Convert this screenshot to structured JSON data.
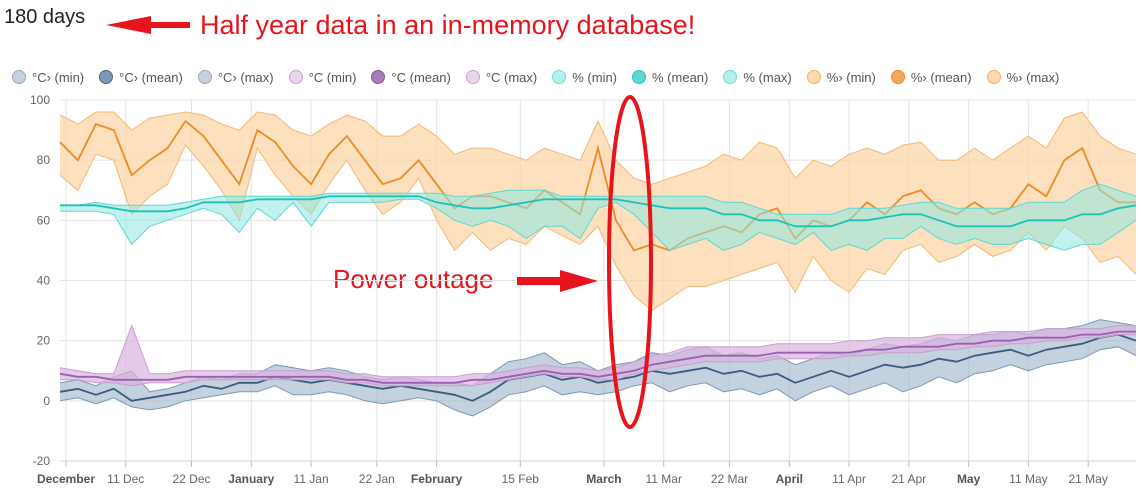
{
  "header": {
    "range_label": "180 days",
    "annotation_title": "Half year data in an in-memory database!",
    "annotation_outage": "Power outage"
  },
  "colors": {
    "annotation": "#e8141c",
    "grid": "#e3e3e3"
  },
  "chart_data": {
    "type": "area",
    "ylim": [
      -20,
      100
    ],
    "yticks": [
      -20,
      0,
      20,
      40,
      60,
      80,
      100
    ],
    "xlim_days": [
      0,
      180
    ],
    "x_axis_labels": [
      {
        "day": 1,
        "label": "December",
        "bold": true
      },
      {
        "day": 11,
        "label": "11 Dec",
        "bold": false
      },
      {
        "day": 22,
        "label": "22 Dec",
        "bold": false
      },
      {
        "day": 32,
        "label": "January",
        "bold": true
      },
      {
        "day": 42,
        "label": "11 Jan",
        "bold": false
      },
      {
        "day": 53,
        "label": "22 Jan",
        "bold": false
      },
      {
        "day": 63,
        "label": "February",
        "bold": true
      },
      {
        "day": 77,
        "label": "15 Feb",
        "bold": false
      },
      {
        "day": 91,
        "label": "March",
        "bold": true
      },
      {
        "day": 101,
        "label": "11 Mar",
        "bold": false
      },
      {
        "day": 112,
        "label": "22 Mar",
        "bold": false
      },
      {
        "day": 122,
        "label": "April",
        "bold": true
      },
      {
        "day": 132,
        "label": "11 Apr",
        "bold": false
      },
      {
        "day": 142,
        "label": "21 Apr",
        "bold": false
      },
      {
        "day": 152,
        "label": "May",
        "bold": true
      },
      {
        "day": 162,
        "label": "11 May",
        "bold": false
      },
      {
        "day": 172,
        "label": "21 May",
        "bold": false
      }
    ],
    "legend": [
      {
        "label": "°C› (min)",
        "color": "#c6d2df",
        "border": "#9aabbf"
      },
      {
        "label": "°C› (mean)",
        "color": "#7f97b4",
        "border": "#4a6587"
      },
      {
        "label": "°C› (max)",
        "color": "#c6d2df",
        "border": "#9aabbf"
      },
      {
        "label": "°C (min)",
        "color": "#ead6ec",
        "border": "#c89fcc"
      },
      {
        "label": "°C (mean)",
        "color": "#a77eb3",
        "border": "#8a55a0"
      },
      {
        "label": "°C (max)",
        "color": "#ead6ec",
        "border": "#c89fcc"
      },
      {
        "label": "% (min)",
        "color": "#b5f0ec",
        "border": "#6fdcd6"
      },
      {
        "label": "% (mean)",
        "color": "#5fd6ce",
        "border": "#26c6bd"
      },
      {
        "label": "% (max)",
        "color": "#b5f0ec",
        "border": "#6fdcd6"
      },
      {
        "label": "%› (min)",
        "color": "#fcd9b0",
        "border": "#f5b06a"
      },
      {
        "label": "%› (mean)",
        "color": "#f6a55e",
        "border": "#ee8a2a"
      },
      {
        "label": "%› (max)",
        "color": "#fcd9b0",
        "border": "#f5b06a"
      }
    ],
    "series": [
      {
        "name": "%›",
        "fill": "#fcd6a8",
        "fill_opacity": 0.75,
        "line": "#ef8b22",
        "edge": "#f4b878",
        "days": [
          0,
          3,
          6,
          9,
          12,
          15,
          18,
          21,
          24,
          27,
          30,
          33,
          36,
          39,
          42,
          45,
          48,
          51,
          54,
          57,
          60,
          63,
          66,
          69,
          72,
          75,
          78,
          81,
          84,
          87,
          90,
          93,
          96,
          99,
          102,
          105,
          108,
          111,
          114,
          117,
          120,
          123,
          126,
          129,
          132,
          135,
          138,
          141,
          144,
          147,
          150,
          153,
          156,
          159,
          162,
          165,
          168,
          171,
          174,
          177,
          180
        ],
        "min": [
          75,
          70,
          82,
          80,
          62,
          68,
          72,
          85,
          78,
          70,
          60,
          84,
          75,
          68,
          62,
          72,
          80,
          70,
          62,
          66,
          74,
          60,
          50,
          56,
          50,
          54,
          52,
          58,
          55,
          52,
          58,
          45,
          35,
          30,
          34,
          38,
          38,
          40,
          42,
          44,
          46,
          36,
          48,
          40,
          36,
          44,
          42,
          50,
          52,
          46,
          48,
          52,
          48,
          50,
          56,
          50,
          58,
          54,
          46,
          48,
          42
        ],
        "mean": [
          86,
          80,
          92,
          90,
          75,
          80,
          84,
          93,
          88,
          80,
          72,
          90,
          86,
          78,
          72,
          82,
          88,
          80,
          72,
          74,
          80,
          72,
          64,
          68,
          68,
          66,
          64,
          70,
          66,
          62,
          84,
          60,
          50,
          52,
          50,
          54,
          56,
          58,
          56,
          62,
          64,
          54,
          60,
          58,
          60,
          66,
          62,
          68,
          70,
          64,
          62,
          66,
          62,
          64,
          72,
          68,
          80,
          84,
          70,
          66,
          66
        ],
        "max": [
          95,
          92,
          96,
          96,
          90,
          94,
          95,
          96,
          95,
          92,
          90,
          96,
          95,
          90,
          88,
          92,
          95,
          93,
          88,
          88,
          92,
          88,
          82,
          84,
          84,
          82,
          80,
          84,
          82,
          80,
          93,
          80,
          74,
          72,
          74,
          76,
          78,
          82,
          80,
          86,
          84,
          74,
          80,
          78,
          82,
          84,
          82,
          85,
          86,
          80,
          80,
          84,
          80,
          84,
          88,
          84,
          94,
          96,
          88,
          84,
          82
        ]
      },
      {
        "name": "%",
        "fill": "#8ee8e1",
        "fill_opacity": 0.55,
        "line": "#1fc2b8",
        "edge": "#5fd8d0",
        "days": [
          0,
          3,
          6,
          9,
          12,
          15,
          18,
          21,
          24,
          27,
          30,
          33,
          36,
          39,
          42,
          45,
          48,
          51,
          54,
          57,
          60,
          63,
          66,
          69,
          72,
          75,
          78,
          81,
          84,
          87,
          90,
          93,
          96,
          99,
          102,
          105,
          108,
          111,
          114,
          117,
          120,
          123,
          126,
          129,
          132,
          135,
          138,
          141,
          144,
          147,
          150,
          153,
          156,
          159,
          162,
          165,
          168,
          171,
          174,
          177,
          180
        ],
        "min": [
          63,
          63,
          63,
          62,
          52,
          58,
          60,
          62,
          64,
          62,
          56,
          64,
          60,
          66,
          58,
          66,
          66,
          66,
          66,
          67,
          67,
          64,
          60,
          58,
          60,
          58,
          54,
          58,
          58,
          54,
          64,
          66,
          62,
          56,
          50,
          52,
          54,
          50,
          52,
          56,
          54,
          52,
          56,
          50,
          52,
          50,
          54,
          54,
          58,
          54,
          52,
          54,
          52,
          52,
          54,
          52,
          50,
          52,
          52,
          56,
          60
        ],
        "mean": [
          65,
          65,
          65,
          64,
          63,
          63,
          63,
          64,
          66,
          66,
          66,
          67,
          67,
          67,
          67,
          68,
          68,
          68,
          68,
          68,
          68,
          66,
          65,
          64,
          64,
          65,
          66,
          67,
          67,
          67,
          67,
          67,
          66,
          65,
          64,
          64,
          64,
          62,
          62,
          60,
          60,
          58,
          58,
          58,
          60,
          60,
          61,
          62,
          62,
          60,
          58,
          58,
          58,
          58,
          60,
          60,
          60,
          62,
          62,
          64,
          65
        ],
        "max": [
          65,
          65,
          66,
          65,
          65,
          65,
          65,
          66,
          67,
          68,
          68,
          68,
          68,
          68,
          68,
          69,
          69,
          69,
          69,
          69,
          69,
          69,
          68,
          68,
          69,
          70,
          70,
          70,
          68,
          68,
          68,
          68,
          68,
          68,
          68,
          68,
          68,
          66,
          66,
          64,
          62,
          62,
          62,
          62,
          64,
          64,
          64,
          65,
          66,
          66,
          64,
          64,
          64,
          64,
          66,
          66,
          66,
          70,
          72,
          70,
          68
        ]
      },
      {
        "name": "°C›",
        "fill": "#9db2ca",
        "fill_opacity": 0.6,
        "line": "#3d5a80",
        "edge": "#7f97b4",
        "days": [
          0,
          3,
          6,
          9,
          12,
          15,
          18,
          21,
          24,
          27,
          30,
          33,
          36,
          39,
          42,
          45,
          48,
          51,
          54,
          57,
          60,
          63,
          66,
          69,
          72,
          75,
          78,
          81,
          84,
          87,
          90,
          93,
          96,
          99,
          102,
          105,
          108,
          111,
          114,
          117,
          120,
          123,
          126,
          129,
          132,
          135,
          138,
          141,
          144,
          147,
          150,
          153,
          156,
          159,
          162,
          165,
          168,
          171,
          174,
          177,
          180
        ],
        "min": [
          0,
          1,
          -1,
          1,
          -2,
          -3,
          -2,
          0,
          1,
          2,
          3,
          3,
          5,
          2,
          2,
          3,
          2,
          0,
          -1,
          0,
          1,
          0,
          -3,
          -5,
          -2,
          2,
          3,
          5,
          2,
          3,
          2,
          3,
          5,
          6,
          3,
          5,
          6,
          3,
          4,
          2,
          4,
          0,
          3,
          5,
          2,
          4,
          6,
          3,
          5,
          8,
          6,
          9,
          10,
          12,
          10,
          12,
          13,
          14,
          17,
          18,
          15
        ],
        "mean": [
          3,
          4,
          2,
          4,
          0,
          1,
          2,
          3,
          5,
          4,
          6,
          6,
          8,
          7,
          6,
          7,
          6,
          5,
          4,
          5,
          4,
          3,
          2,
          0,
          3,
          7,
          8,
          9,
          7,
          8,
          6,
          7,
          8,
          10,
          9,
          10,
          11,
          9,
          10,
          8,
          9,
          6,
          8,
          10,
          8,
          10,
          12,
          11,
          12,
          14,
          13,
          15,
          16,
          17,
          15,
          17,
          18,
          19,
          21,
          22,
          20
        ],
        "max": [
          6,
          7,
          5,
          8,
          10,
          3,
          4,
          6,
          8,
          7,
          9,
          9,
          12,
          11,
          10,
          11,
          10,
          8,
          7,
          8,
          7,
          6,
          6,
          5,
          9,
          13,
          14,
          16,
          12,
          13,
          10,
          12,
          13,
          16,
          15,
          17,
          18,
          15,
          16,
          14,
          15,
          12,
          14,
          16,
          15,
          17,
          19,
          18,
          19,
          21,
          20,
          22,
          22,
          23,
          22,
          24,
          24,
          25,
          27,
          26,
          25
        ]
      },
      {
        "name": "°C",
        "fill": "#d9b4de",
        "fill_opacity": 0.7,
        "line": "#9a5fb0",
        "edge": "#c89fcc",
        "days": [
          0,
          3,
          6,
          9,
          12,
          15,
          18,
          21,
          24,
          27,
          30,
          33,
          36,
          39,
          42,
          45,
          48,
          51,
          54,
          57,
          60,
          63,
          66,
          69,
          72,
          75,
          78,
          81,
          84,
          87,
          90,
          93,
          96,
          99,
          102,
          105,
          108,
          111,
          114,
          117,
          120,
          123,
          126,
          129,
          132,
          135,
          138,
          141,
          144,
          147,
          150,
          153,
          156,
          159,
          162,
          165,
          168,
          171,
          174,
          177,
          180
        ],
        "min": [
          7,
          7,
          6,
          6,
          5,
          6,
          6,
          6,
          7,
          7,
          7,
          7,
          7,
          7,
          7,
          7,
          6,
          6,
          5,
          5,
          5,
          5,
          5,
          5,
          6,
          7,
          8,
          9,
          8,
          8,
          7,
          7,
          9,
          10,
          11,
          12,
          13,
          13,
          13,
          13,
          14,
          14,
          14,
          14,
          15,
          15,
          16,
          16,
          16,
          17,
          17,
          18,
          18,
          19,
          19,
          20,
          20,
          21,
          21,
          22,
          22
        ],
        "mean": [
          9,
          8,
          8,
          7,
          7,
          7,
          7,
          8,
          8,
          8,
          8,
          8,
          8,
          8,
          8,
          8,
          7,
          7,
          6,
          6,
          6,
          6,
          6,
          7,
          7,
          8,
          9,
          10,
          9,
          9,
          8,
          9,
          10,
          12,
          13,
          14,
          15,
          15,
          15,
          15,
          16,
          16,
          16,
          16,
          16,
          17,
          17,
          18,
          18,
          18,
          19,
          19,
          20,
          20,
          21,
          21,
          21,
          22,
          22,
          23,
          23
        ],
        "max": [
          11,
          10,
          9,
          9,
          25,
          9,
          9,
          10,
          10,
          10,
          10,
          10,
          10,
          10,
          10,
          10,
          9,
          9,
          8,
          8,
          8,
          8,
          8,
          9,
          9,
          10,
          11,
          12,
          11,
          11,
          10,
          11,
          13,
          15,
          16,
          18,
          18,
          18,
          18,
          18,
          19,
          19,
          19,
          19,
          20,
          20,
          21,
          21,
          21,
          22,
          22,
          22,
          23,
          23,
          23,
          24,
          24,
          24,
          24,
          25,
          25
        ]
      }
    ]
  }
}
